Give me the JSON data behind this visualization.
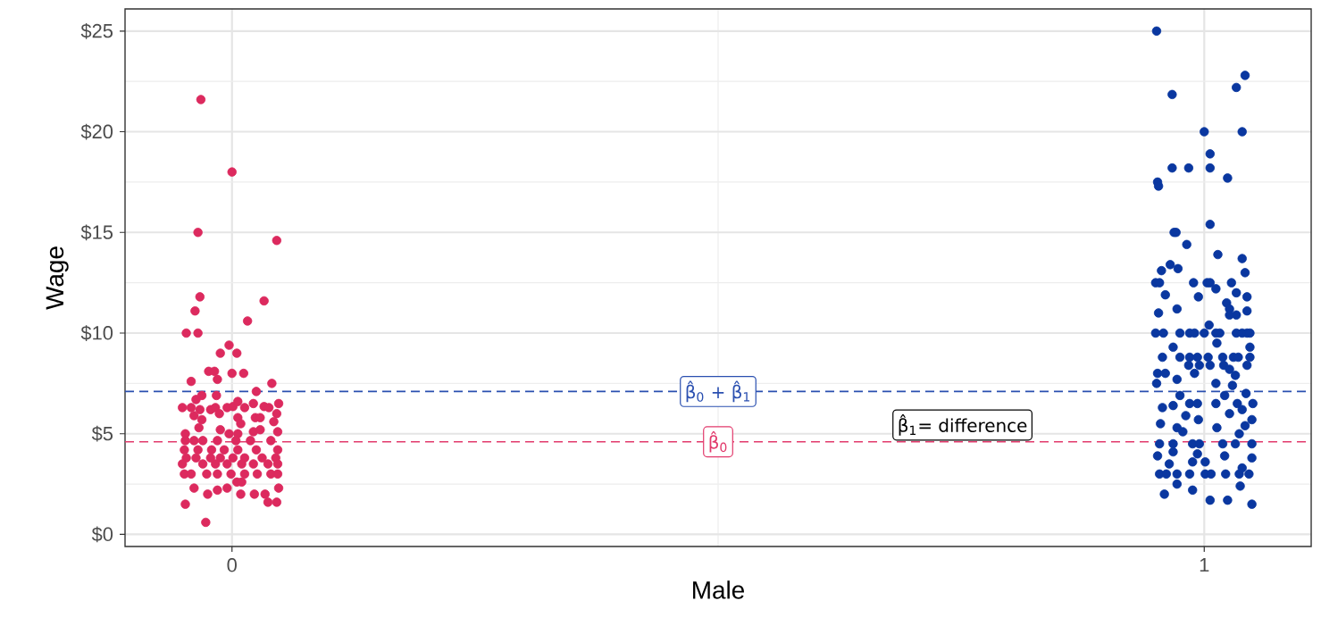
{
  "chart_data": {
    "type": "scatter",
    "xlabel": "Male",
    "ylabel": "Wage",
    "xlim": [
      -0.11,
      1.11
    ],
    "ylim": [
      -0.6,
      26.1
    ],
    "xticks": [
      0,
      1
    ],
    "yticks": [
      {
        "value": 0,
        "label": "$0"
      },
      {
        "value": 5,
        "label": "$5"
      },
      {
        "value": 10,
        "label": "$10"
      },
      {
        "value": 15,
        "label": "$15"
      },
      {
        "value": 20,
        "label": "$20"
      },
      {
        "value": 25,
        "label": "$25"
      }
    ],
    "grid": true,
    "series": [
      {
        "color": "#dc2a5e",
        "x": [
          -0.032,
          0,
          -0.035,
          0.046,
          -0.033,
          0.033,
          -0.038,
          0.016,
          -0.047,
          -0.035,
          -0.003,
          -0.012,
          0.005,
          -0.024,
          -0.018,
          -0.042,
          -0.015,
          0,
          0.012,
          0.041,
          0.025,
          -0.031,
          -0.016,
          -0.037,
          -0.051,
          -0.042,
          -0.033,
          -0.022,
          -0.017,
          -0.013,
          -0.005,
          0.001,
          0.006,
          0.013,
          0.022,
          0.033,
          0.038,
          0.048,
          -0.039,
          -0.031,
          0.006,
          0.024,
          0.029,
          0.046,
          0.043,
          0.009,
          -0.034,
          -0.012,
          -0.003,
          0.006,
          0.022,
          0.029,
          0.047,
          -0.048,
          -0.048,
          -0.039,
          -0.03,
          -0.015,
          0.004,
          0.019,
          0.04,
          -0.049,
          -0.035,
          -0.021,
          -0.008,
          0.006,
          0.025,
          0.047,
          -0.047,
          -0.037,
          -0.022,
          -0.012,
          0.001,
          0.013,
          0.031,
          0.045,
          -0.051,
          -0.03,
          -0.017,
          -0.005,
          0.01,
          0.022,
          0.037,
          0.047,
          -0.049,
          -0.042,
          -0.026,
          -0.015,
          -0.001,
          0.013,
          0.026,
          0.04,
          0.047,
          -0.039,
          -0.025,
          -0.015,
          -0.005,
          0.009,
          0.023,
          0.034,
          0.048,
          -0.048,
          0.037,
          0.046,
          -0.027,
          0.005,
          0.01
        ],
        "values": [
          21.6,
          18.0,
          15.0,
          14.6,
          11.8,
          11.6,
          11.1,
          10.6,
          10.0,
          10.0,
          9.4,
          9.0,
          9.0,
          8.1,
          8.1,
          7.6,
          7.7,
          8.0,
          8.0,
          7.5,
          7.1,
          6.9,
          6.9,
          6.7,
          6.3,
          6.3,
          6.2,
          6.2,
          6.3,
          6.0,
          6.3,
          6.35,
          6.6,
          6.3,
          6.5,
          6.35,
          6.3,
          6.5,
          5.9,
          5.7,
          5.8,
          5.8,
          5.8,
          6.0,
          5.6,
          5.5,
          5.3,
          5.2,
          5.0,
          5.0,
          5.1,
          5.2,
          5.1,
          5.0,
          4.66,
          4.66,
          4.66,
          4.66,
          4.66,
          4.66,
          4.66,
          4.2,
          4.2,
          4.2,
          4.2,
          4.2,
          4.2,
          4.2,
          3.8,
          3.8,
          3.8,
          3.8,
          3.8,
          3.8,
          3.8,
          3.8,
          3.5,
          3.5,
          3.5,
          3.5,
          3.5,
          3.5,
          3.5,
          3.5,
          3.0,
          3.0,
          3.0,
          3.0,
          3.0,
          3.0,
          3.0,
          3.0,
          3.0,
          2.3,
          2.0,
          2.2,
          2.3,
          2.0,
          2.0,
          2.0,
          2.3,
          1.5,
          1.6,
          1.6,
          0.6,
          2.6,
          2.6
        ]
      },
      {
        "color": "#0a37a0",
        "x": [
          0.951,
          0.967,
          1.042,
          1.033,
          1.0,
          1.039,
          1.006,
          0.967,
          0.984,
          1.006,
          1.024,
          0.952,
          0.953,
          1.006,
          0.969,
          0.971,
          0.982,
          1.014,
          1.039,
          0.956,
          0.965,
          0.973,
          1.042,
          0.95,
          0.954,
          0.989,
          1.003,
          1.006,
          1.028,
          0.96,
          0.994,
          1.012,
          1.033,
          1.044,
          0.972,
          1.023,
          1.026,
          1.033,
          1.044,
          0.953,
          1.026,
          0.95,
          0.958,
          0.975,
          0.985,
          0.99,
          1.0,
          1.012,
          1.016,
          1.033,
          1.039,
          1.044,
          1.047,
          1.005,
          1.013,
          0.968,
          1.047,
          0.957,
          0.975,
          0.985,
          0.993,
          1.004,
          1.019,
          1.03,
          1.035,
          1.047,
          0.984,
          0.995,
          1.006,
          1.02,
          1.044,
          0.952,
          0.96,
          0.99,
          1.026,
          1.032,
          0.951,
          0.972,
          1.012,
          1.029,
          1.043,
          0.975,
          1.021,
          0.985,
          0.993,
          1.012,
          1.034,
          1.05,
          0.957,
          0.968,
          0.994,
          0.955,
          0.981,
          1.026,
          1.039,
          1.049,
          0.972,
          0.978,
          1.013,
          1.042,
          1.036,
          0.954,
          0.968,
          0.988,
          0.995,
          1.019,
          1.032,
          1.049,
          0.952,
          0.968,
          1.021,
          1.049,
          0.993,
          0.954,
          0.961,
          0.972,
          0.985,
          1.001,
          1.007,
          1.022,
          1.036,
          1.046,
          0.964,
          0.988,
          1.039,
          1.001,
          0.972,
          1.037,
          0.959,
          0.988,
          1.006,
          1.024,
          1.049
        ],
        "values": [
          25.0,
          21.85,
          22.8,
          22.2,
          20.0,
          20.0,
          18.9,
          18.2,
          18.2,
          18.2,
          17.7,
          17.5,
          17.3,
          15.4,
          15.0,
          15.0,
          14.4,
          13.9,
          13.7,
          13.1,
          13.4,
          13.2,
          13.0,
          12.5,
          12.5,
          12.5,
          12.5,
          12.5,
          12.5,
          11.9,
          11.8,
          12.2,
          12.0,
          11.8,
          11.2,
          11.5,
          11.2,
          10.9,
          11.1,
          11.0,
          10.9,
          10.0,
          10.0,
          10.0,
          10.0,
          10.0,
          10.0,
          10.0,
          10.0,
          10.0,
          10.0,
          10.0,
          10.0,
          10.4,
          9.5,
          9.3,
          9.3,
          8.8,
          8.8,
          8.8,
          8.8,
          8.8,
          8.8,
          8.8,
          8.8,
          8.8,
          8.4,
          8.4,
          8.4,
          8.4,
          8.4,
          8.0,
          8.0,
          8.0,
          8.2,
          7.9,
          7.5,
          7.7,
          7.5,
          7.4,
          7.0,
          6.9,
          6.9,
          6.5,
          6.5,
          6.5,
          6.5,
          6.5,
          6.3,
          6.4,
          5.7,
          5.5,
          5.9,
          6.0,
          6.2,
          5.7,
          5.3,
          5.1,
          5.3,
          5.4,
          5.0,
          4.5,
          4.5,
          4.5,
          4.5,
          4.5,
          4.5,
          4.5,
          3.9,
          4.1,
          3.9,
          3.8,
          4.0,
          3.0,
          3.0,
          3.0,
          3.0,
          3.0,
          3.0,
          3.0,
          3.0,
          3.0,
          3.5,
          3.6,
          3.3,
          3.6,
          2.5,
          2.4,
          2.0,
          2.2,
          1.7,
          1.7,
          1.5
        ]
      }
    ],
    "ref_lines": [
      {
        "axis": "y",
        "value": 7.1,
        "label": "β̂$_{0}$ + β̂$_{1}$",
        "color": "#2a4fb0",
        "line_style": "dashed"
      },
      {
        "axis": "y",
        "value": 4.6,
        "label": "β̂$_{0}$",
        "color": "#e23a6c",
        "line_style": "dashed"
      }
    ],
    "annotations": [
      "β̂$_{1}$= difference"
    ]
  }
}
